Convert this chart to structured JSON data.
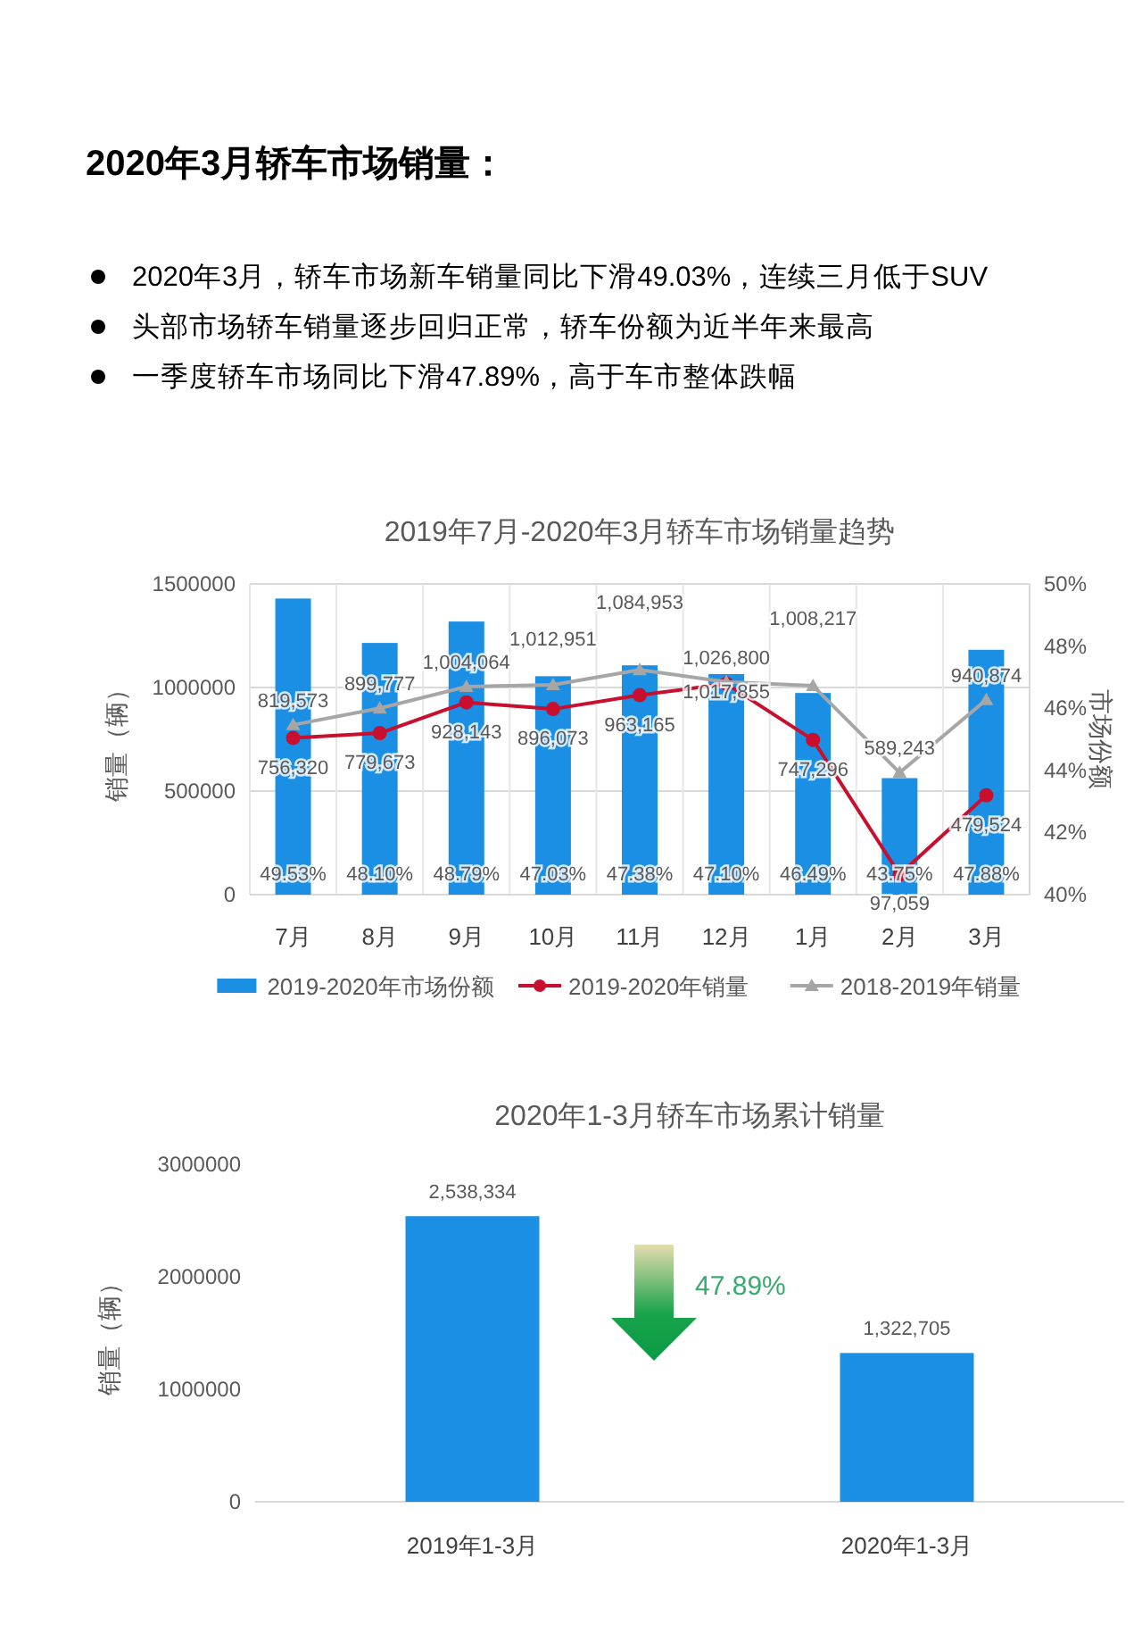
{
  "chart_data": [
    {
      "type": "other",
      "title": "2020年3月轿车市场销量：",
      "annotations": [
        "2020年3月，轿车市场新车销量同比下滑49.03%，连续三月低于SUV",
        "头部市场轿车销量逐步回归正常，轿车份额为近半年来最高",
        "一季度轿车市场同比下滑47.89%，高于车市整体跌幅"
      ]
    },
    {
      "type": "bar",
      "title": "2019年7月-2020年3月轿车市场销量趋势",
      "ylabel": "销量（辆）",
      "y2label": "市场份额",
      "categories": [
        "7月",
        "8月",
        "9月",
        "10月",
        "11月",
        "12月",
        "1月",
        "2月",
        "3月"
      ],
      "series": [
        {
          "name": "2019-2020年市场份额",
          "type": "bar",
          "axis": "y2",
          "color": "#1a8fe3",
          "values": [
            49.53,
            48.1,
            48.79,
            47.03,
            47.38,
            47.1,
            46.49,
            43.75,
            47.88
          ],
          "value_labels": [
            "49.53%",
            "48.10%",
            "48.79%",
            "47.03%",
            "47.38%",
            "47.10%",
            "46.49%",
            "43.75%",
            "47.88%"
          ]
        },
        {
          "name": "2019-2020年销量",
          "type": "line",
          "color": "#c8102e",
          "marker": "circle",
          "values": [
            756320,
            779673,
            928143,
            896073,
            963165,
            1017855,
            747296,
            97059,
            479524
          ],
          "value_labels": [
            "756,320",
            "779,673",
            "928,143",
            "896,073",
            "963,165",
            "1,017,855",
            "747,296",
            "97,059",
            "479,524"
          ]
        },
        {
          "name": "2018-2019年销量",
          "type": "line",
          "color": "#a6a6a6",
          "marker": "triangle",
          "values": [
            819573,
            899777,
            1004064,
            1012951,
            1084953,
            1026800,
            1008217,
            589243,
            940874
          ],
          "value_labels": [
            "819,573",
            "899,777",
            "1,004,064",
            "1,012,951",
            "1,084,953",
            "1,026,800",
            "1,008,217",
            "589,243",
            "940,874"
          ]
        }
      ],
      "ylim": [
        0,
        1500000
      ],
      "yticks": [
        0,
        500000,
        1000000,
        1500000
      ],
      "y2lim": [
        40,
        50
      ],
      "y2ticks": [
        {
          "value": 40,
          "label": "40%"
        },
        {
          "value": 42,
          "label": "42%"
        },
        {
          "value": 44,
          "label": "44%"
        },
        {
          "value": 46,
          "label": "46%"
        },
        {
          "value": 48,
          "label": "48%"
        },
        {
          "value": 50,
          "label": "50%"
        }
      ],
      "grid": true,
      "legend": "bottom"
    },
    {
      "type": "bar",
      "title": "2020年1-3月轿车市场累计销量",
      "ylabel": "销量（辆）",
      "categories": [
        "2019年1-3月",
        "2020年1-3月"
      ],
      "values": [
        2538334,
        1322705
      ],
      "value_labels": [
        "2,538,334",
        "1,322,705"
      ],
      "color": "#1a8fe3",
      "ylim": [
        0,
        3000000
      ],
      "yticks": [
        0,
        1000000,
        2000000,
        3000000
      ],
      "annotations": [
        "47.89%"
      ]
    }
  ]
}
